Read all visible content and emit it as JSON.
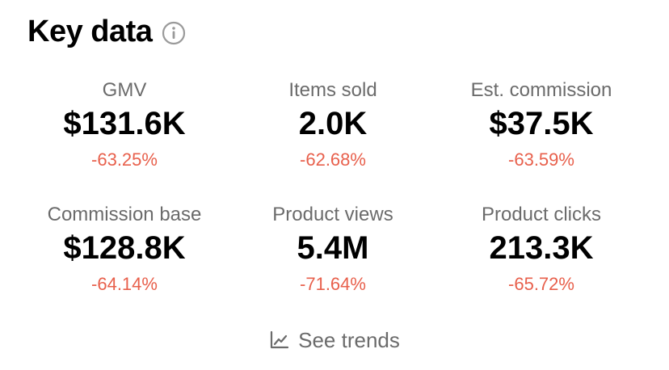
{
  "header": {
    "title": "Key data",
    "info_icon": "info-icon"
  },
  "metrics": [
    [
      {
        "label": "GMV",
        "value": "$131.6K",
        "change": "-63.25%"
      },
      {
        "label": "Items sold",
        "value": "2.0K",
        "change": "-62.68%"
      },
      {
        "label": "Est. commission",
        "value": "$37.5K",
        "change": "-63.59%"
      }
    ],
    [
      {
        "label": "Commission base",
        "value": "$128.8K",
        "change": "-64.14%"
      },
      {
        "label": "Product views",
        "value": "5.4M",
        "change": "-71.64%"
      },
      {
        "label": "Product clicks",
        "value": "213.3K",
        "change": "-65.72%"
      }
    ]
  ],
  "trends": {
    "label": "See trends",
    "icon": "line-chart-icon"
  },
  "colors": {
    "negative": "#e8604c",
    "label": "#6b6b6b",
    "value": "#000000"
  }
}
